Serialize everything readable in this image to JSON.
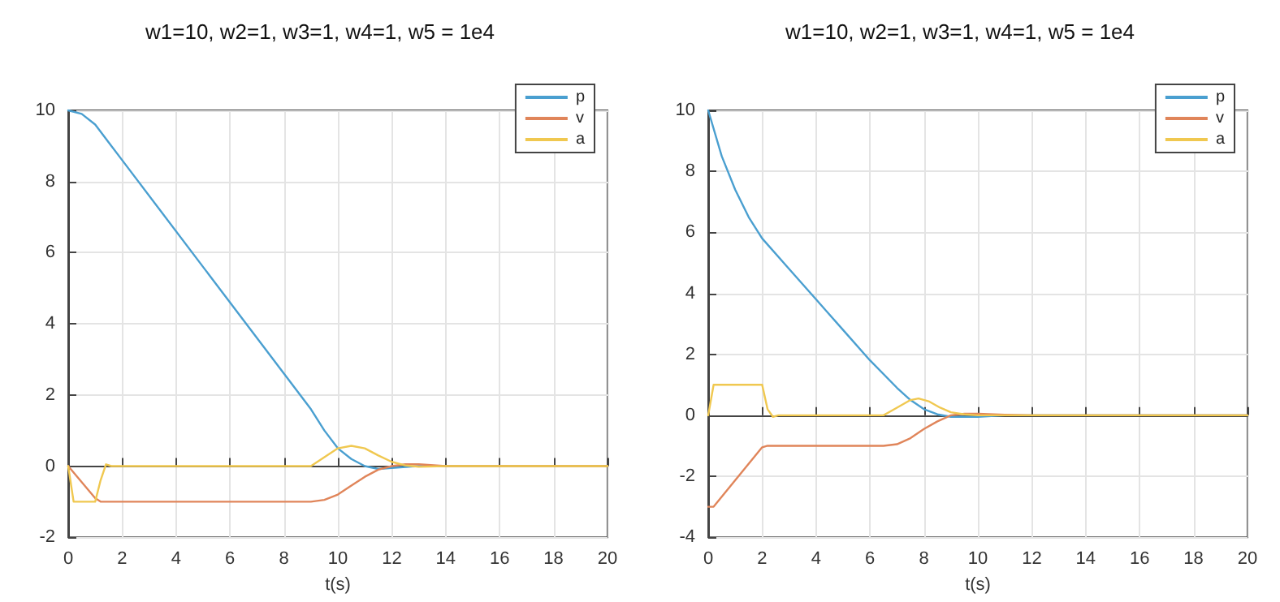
{
  "chart_data": [
    {
      "type": "line",
      "title": "w1=10, w2=1, w3=1, w4=1, w5 = 1e4",
      "xlabel": "t(s)",
      "xlim": [
        0,
        20
      ],
      "xticks": [
        0,
        2,
        4,
        6,
        8,
        10,
        12,
        14,
        16,
        18,
        20
      ],
      "ylim": [
        -2,
        10
      ],
      "yticks": [
        -2,
        0,
        2,
        4,
        6,
        8,
        10
      ],
      "grid": true,
      "legend": "top right",
      "marker": "none",
      "line_style": "solid",
      "series": [
        {
          "name": "p",
          "color": "#4a9fd0",
          "x": [
            0,
            0.5,
            1,
            1.5,
            2,
            9,
            9.5,
            10,
            10.5,
            11,
            11.5,
            12,
            13,
            20
          ],
          "values": [
            10,
            9.9,
            9.6,
            9.1,
            8.6,
            1.6,
            1.0,
            0.5,
            0.2,
            0.0,
            -0.08,
            -0.05,
            0,
            0
          ]
        },
        {
          "name": "v",
          "color": "#e0855a",
          "x": [
            0,
            1,
            1.2,
            9,
            9.5,
            10,
            10.5,
            11,
            11.5,
            12,
            12.5,
            13,
            14,
            20
          ],
          "values": [
            0,
            -0.9,
            -1,
            -1,
            -0.95,
            -0.8,
            -0.55,
            -0.3,
            -0.1,
            0.0,
            0.05,
            0.05,
            0,
            0
          ]
        },
        {
          "name": "a",
          "color": "#f0c850",
          "x": [
            0,
            0.2,
            1,
            1.2,
            1.4,
            1.6,
            9,
            9.5,
            10,
            10.5,
            11,
            11.5,
            12,
            12.5,
            13,
            14,
            20
          ],
          "values": [
            0,
            -1,
            -1,
            -0.4,
            0.05,
            0,
            0,
            0.25,
            0.5,
            0.57,
            0.5,
            0.3,
            0.12,
            0.02,
            -0.02,
            0,
            0
          ]
        }
      ]
    },
    {
      "type": "line",
      "title": "w1=10, w2=1, w3=1, w4=1, w5 = 1e4",
      "xlabel": "t(s)",
      "xlim": [
        0,
        20
      ],
      "xticks": [
        0,
        2,
        4,
        6,
        8,
        10,
        12,
        14,
        16,
        18,
        20
      ],
      "ylim": [
        -4,
        10
      ],
      "yticks": [
        -4,
        -2,
        0,
        2,
        4,
        6,
        8,
        10
      ],
      "grid": true,
      "legend": "top right",
      "marker": "none",
      "line_style": "solid",
      "series": [
        {
          "name": "p",
          "color": "#4a9fd0",
          "x": [
            0,
            0.5,
            1,
            1.5,
            2,
            3,
            4,
            5,
            6,
            7,
            7.5,
            8,
            8.5,
            9,
            10,
            11,
            20
          ],
          "values": [
            10,
            8.5,
            7.4,
            6.5,
            5.8,
            4.8,
            3.8,
            2.8,
            1.8,
            0.9,
            0.5,
            0.2,
            0.03,
            -0.05,
            -0.05,
            0,
            0
          ]
        },
        {
          "name": "v",
          "color": "#e0855a",
          "x": [
            0,
            0.2,
            2,
            2.2,
            6.5,
            7,
            7.5,
            8,
            8.5,
            9,
            9.5,
            10,
            11,
            12,
            20
          ],
          "values": [
            -3,
            -3,
            -1.05,
            -1,
            -1,
            -0.95,
            -0.75,
            -0.45,
            -0.2,
            0,
            0.05,
            0.05,
            0.02,
            0,
            0
          ]
        },
        {
          "name": "a",
          "color": "#f0c850",
          "x": [
            0,
            0.2,
            2,
            2.2,
            2.4,
            2.6,
            6.5,
            7,
            7.5,
            7.8,
            8.2,
            8.6,
            9,
            9.5,
            10,
            20
          ],
          "values": [
            0,
            1,
            1,
            0.2,
            -0.05,
            0,
            0,
            0.25,
            0.5,
            0.55,
            0.45,
            0.25,
            0.1,
            0.03,
            0,
            0
          ]
        }
      ]
    }
  ]
}
